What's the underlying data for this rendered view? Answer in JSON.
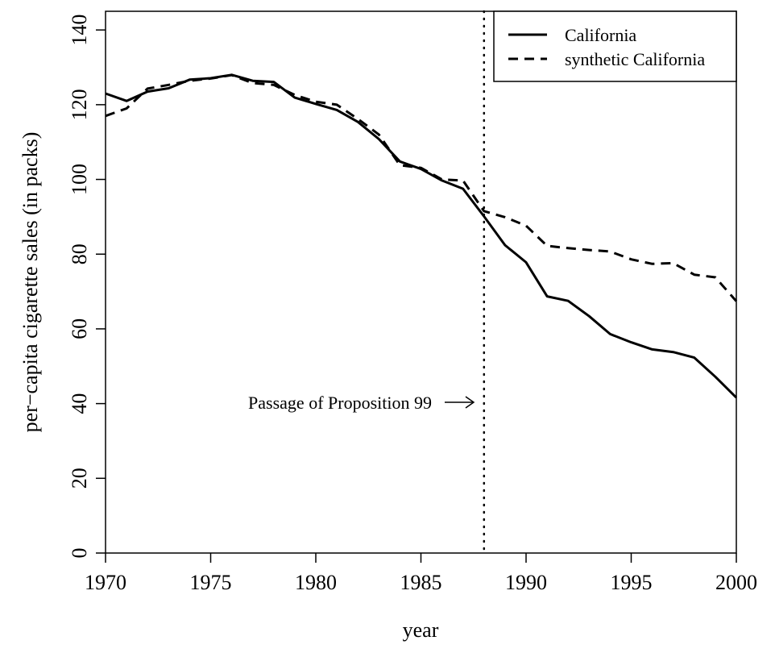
{
  "chart_data": {
    "type": "line",
    "title": "",
    "xlabel": "year",
    "ylabel": "per−capita cigarette sales (in packs)",
    "xlim": [
      1970,
      2000
    ],
    "ylim": [
      0,
      145
    ],
    "x_ticks": [
      1970,
      1975,
      1980,
      1985,
      1990,
      1995,
      2000
    ],
    "y_ticks": [
      0,
      20,
      40,
      60,
      80,
      100,
      120,
      140
    ],
    "x_tick_labels": [
      "1970",
      "1975",
      "1980",
      "1985",
      "1990",
      "1995",
      "2000"
    ],
    "y_tick_labels": [
      "0",
      "20",
      "40",
      "60",
      "80",
      "100",
      "120",
      "140"
    ],
    "grid": false,
    "legend_position": "top-right",
    "x": [
      1970,
      1971,
      1972,
      1973,
      1974,
      1975,
      1976,
      1977,
      1978,
      1979,
      1980,
      1981,
      1982,
      1983,
      1984,
      1985,
      1986,
      1987,
      1988,
      1989,
      1990,
      1991,
      1992,
      1993,
      1994,
      1995,
      1996,
      1997,
      1998,
      1999,
      2000
    ],
    "series": [
      {
        "name": "California",
        "line_style": "solid",
        "color": "#000000",
        "values": [
          123.0,
          121.0,
          123.5,
          124.4,
          126.7,
          127.1,
          128.0,
          126.4,
          126.1,
          121.9,
          120.2,
          118.6,
          115.4,
          110.8,
          104.8,
          102.8,
          99.7,
          97.5,
          90.1,
          82.4,
          77.8,
          68.7,
          67.5,
          63.4,
          58.6,
          56.4,
          54.5,
          53.8,
          52.3,
          47.2,
          41.6
        ]
      },
      {
        "name": "synthetic California",
        "line_style": "dashed",
        "color": "#000000",
        "values": [
          117.0,
          119.0,
          124.3,
          125.3,
          126.4,
          127.0,
          127.9,
          125.8,
          125.3,
          122.6,
          120.8,
          120.0,
          116.2,
          112.0,
          103.8,
          103.1,
          100.0,
          99.7,
          91.5,
          89.9,
          87.6,
          82.2,
          81.6,
          81.1,
          80.7,
          78.6,
          77.4,
          77.6,
          74.5,
          73.8,
          67.4
        ]
      }
    ],
    "annotations": [
      {
        "text": "Passage of Proposition 99",
        "x": 1988,
        "y": 40,
        "kind": "arrow-to-vertical-line"
      }
    ],
    "vertical_lines": [
      {
        "x": 1988,
        "line_style": "dotted"
      }
    ]
  }
}
